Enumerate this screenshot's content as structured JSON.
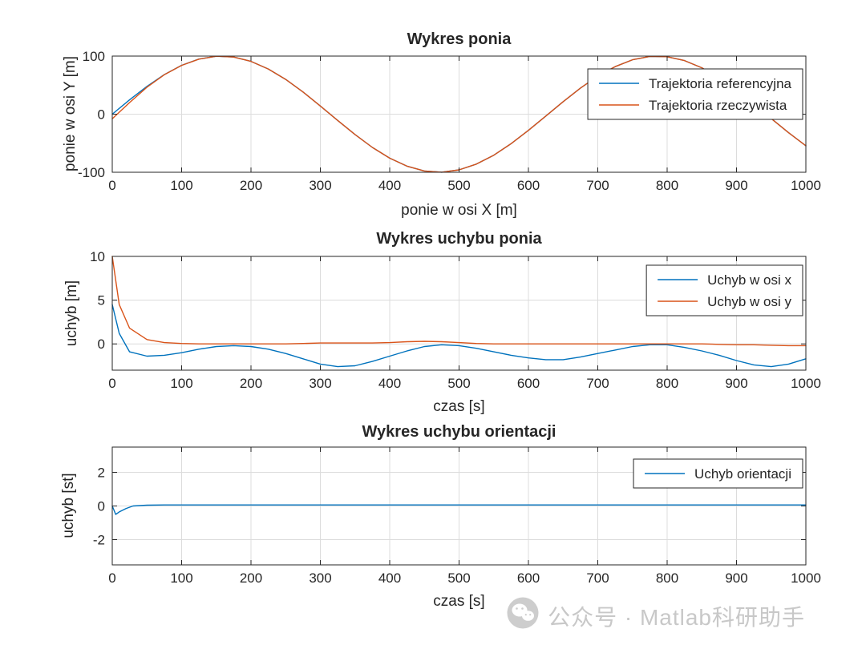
{
  "palette": {
    "blue": "#0072BD",
    "orange": "#D95319",
    "grid": "#dcdcdc",
    "axis": "#262626",
    "tick_label": "#262626",
    "watermark": "#c8c8c8"
  },
  "watermark": {
    "icon": "wechat-icon",
    "text": "公众号 · Matlab科研助手"
  },
  "chart_data": [
    {
      "type": "line",
      "title": "Wykres ponia",
      "xlabel": "ponie w osi X [m]",
      "ylabel": "ponie w osi Y [m]",
      "xlim": [
        0,
        1000
      ],
      "ylim": [
        -100,
        100
      ],
      "xticks": [
        0,
        100,
        200,
        300,
        400,
        500,
        600,
        700,
        800,
        900,
        1000
      ],
      "yticks": [
        -100,
        0,
        100
      ],
      "grid": true,
      "legend": {
        "position": "inside-top-right"
      },
      "series": [
        {
          "name": "Trajektoria referencyjna",
          "color": "#0072BD",
          "x": [
            0,
            25,
            50,
            75,
            100,
            125,
            150,
            175,
            200,
            225,
            250,
            275,
            300,
            325,
            350,
            375,
            400,
            425,
            450,
            475,
            500,
            525,
            550,
            575,
            600,
            625,
            650,
            675,
            700,
            725,
            750,
            775,
            800,
            825,
            850,
            875,
            900,
            925,
            950,
            975,
            1000
          ],
          "y": [
            0,
            24.7,
            47.9,
            68.2,
            84.1,
            94.9,
            99.7,
            98.4,
            90.9,
            77.8,
            59.8,
            38.2,
            14.1,
            -10.8,
            -35.1,
            -57.2,
            -75.7,
            -89.5,
            -97.8,
            -99.9,
            -95.9,
            -85.9,
            -70.6,
            -50.8,
            -27.9,
            -3.3,
            21.5,
            45,
            65.7,
            81.8,
            93.7,
            99.5,
            98.9,
            92.3,
            79.8,
            62.5,
            41.2,
            17.4,
            -7.5,
            -31.9,
            -54.4
          ]
        },
        {
          "name": "Trajektoria rzeczywista",
          "color": "#D95319",
          "x": [
            0,
            25,
            50,
            75,
            100,
            125,
            150,
            175,
            200,
            225,
            250,
            275,
            300,
            325,
            350,
            375,
            400,
            425,
            450,
            475,
            500,
            525,
            550,
            575,
            600,
            625,
            650,
            675,
            700,
            725,
            750,
            775,
            800,
            825,
            850,
            875,
            900,
            925,
            950,
            975,
            1000
          ],
          "y": [
            -8,
            20,
            46.5,
            67.8,
            84,
            94.8,
            99.7,
            98.4,
            90.9,
            77.8,
            59.8,
            38.2,
            14.1,
            -10.8,
            -35.1,
            -57.2,
            -75.7,
            -89.5,
            -97.8,
            -99.9,
            -95.9,
            -85.9,
            -70.6,
            -50.8,
            -27.9,
            -3.3,
            21.5,
            45,
            65.7,
            81.8,
            93.7,
            99.5,
            98.9,
            92.3,
            79.8,
            62.5,
            41.2,
            17.4,
            -7.5,
            -31.9,
            -54.4
          ]
        }
      ]
    },
    {
      "type": "line",
      "title": "Wykres uchybu ponia",
      "xlabel": "czas [s]",
      "ylabel": "uchyb [m]",
      "xlim": [
        0,
        1000
      ],
      "ylim": [
        -3,
        10
      ],
      "xticks": [
        0,
        100,
        200,
        300,
        400,
        500,
        600,
        700,
        800,
        900,
        1000
      ],
      "yticks": [
        0,
        5,
        10
      ],
      "grid": true,
      "legend": {
        "position": "inside-top-right"
      },
      "series": [
        {
          "name": "Uchyb w osi x",
          "color": "#0072BD",
          "x": [
            0,
            10,
            25,
            50,
            75,
            100,
            125,
            150,
            175,
            200,
            225,
            250,
            275,
            300,
            325,
            350,
            375,
            400,
            425,
            450,
            475,
            500,
            525,
            550,
            575,
            600,
            625,
            650,
            675,
            700,
            725,
            750,
            775,
            800,
            825,
            850,
            875,
            900,
            925,
            950,
            975,
            1000
          ],
          "y": [
            4.5,
            1.2,
            -0.9,
            -1.4,
            -1.3,
            -1.0,
            -0.6,
            -0.3,
            -0.2,
            -0.3,
            -0.6,
            -1.1,
            -1.7,
            -2.3,
            -2.6,
            -2.5,
            -2.0,
            -1.4,
            -0.8,
            -0.3,
            -0.1,
            -0.2,
            -0.5,
            -0.9,
            -1.3,
            -1.6,
            -1.8,
            -1.8,
            -1.5,
            -1.1,
            -0.7,
            -0.3,
            -0.1,
            -0.1,
            -0.4,
            -0.8,
            -1.3,
            -1.9,
            -2.4,
            -2.6,
            -2.3,
            -1.7
          ]
        },
        {
          "name": "Uchyb w osi y",
          "color": "#D95319",
          "x": [
            0,
            10,
            25,
            50,
            75,
            100,
            125,
            150,
            175,
            200,
            225,
            250,
            275,
            300,
            325,
            350,
            375,
            400,
            425,
            450,
            475,
            500,
            525,
            550,
            575,
            600,
            625,
            650,
            675,
            700,
            725,
            750,
            775,
            800,
            825,
            850,
            875,
            900,
            925,
            950,
            975,
            1000
          ],
          "y": [
            10,
            4.5,
            1.8,
            0.5,
            0.15,
            0.05,
            0,
            0,
            0,
            0,
            0,
            0,
            0.05,
            0.1,
            0.1,
            0.1,
            0.1,
            0.15,
            0.25,
            0.3,
            0.25,
            0.15,
            0.05,
            0,
            0,
            0,
            0,
            0,
            0,
            0,
            0,
            0,
            0,
            0,
            0,
            0,
            -0.05,
            -0.1,
            -0.1,
            -0.15,
            -0.2,
            -0.2
          ]
        }
      ]
    },
    {
      "type": "line",
      "title": "Wykres uchybu orientacji",
      "xlabel": "czas [s]",
      "ylabel": "uchyb [st]",
      "xlim": [
        0,
        1000
      ],
      "ylim": [
        -3.5,
        3.5
      ],
      "xticks": [
        0,
        100,
        200,
        300,
        400,
        500,
        600,
        700,
        800,
        900,
        1000
      ],
      "yticks": [
        -2,
        0,
        2
      ],
      "grid": true,
      "legend": {
        "position": "inside-top-right"
      },
      "series": [
        {
          "name": "Uchyb orientacji",
          "color": "#0072BD",
          "x": [
            0,
            5,
            10,
            20,
            30,
            50,
            75,
            100,
            150,
            200,
            250,
            300,
            350,
            400,
            450,
            500,
            550,
            600,
            650,
            700,
            750,
            800,
            850,
            900,
            950,
            1000
          ],
          "y": [
            0,
            -0.5,
            -0.35,
            -0.15,
            0,
            0.05,
            0.06,
            0.06,
            0.06,
            0.06,
            0.06,
            0.06,
            0.06,
            0.06,
            0.06,
            0.06,
            0.06,
            0.06,
            0.06,
            0.06,
            0.06,
            0.06,
            0.06,
            0.06,
            0.06,
            0.06
          ]
        }
      ]
    }
  ]
}
